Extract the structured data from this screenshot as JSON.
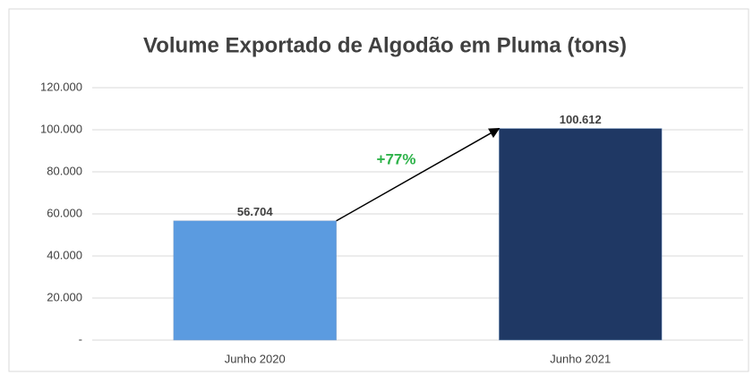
{
  "chart_data": {
    "type": "bar",
    "title": "Volume Exportado de Algodão em Pluma (tons)",
    "categories": [
      "Junho 2020",
      "Junho 2021"
    ],
    "values": [
      56704,
      100612
    ],
    "value_labels": [
      "56.704",
      "100.612"
    ],
    "colors": [
      "#5b9be0",
      "#1f3864"
    ],
    "annotation": "+77%",
    "ylim": [
      0,
      120000
    ],
    "yticks": [
      {
        "value": 0,
        "label": "-"
      },
      {
        "value": 20000,
        "label": "20.000"
      },
      {
        "value": 40000,
        "label": "40.000"
      },
      {
        "value": 60000,
        "label": "60.000"
      },
      {
        "value": 80000,
        "label": "80.000"
      },
      {
        "value": 100000,
        "label": "100.000"
      },
      {
        "value": 120000,
        "label": "120.000"
      }
    ],
    "grid": true
  }
}
